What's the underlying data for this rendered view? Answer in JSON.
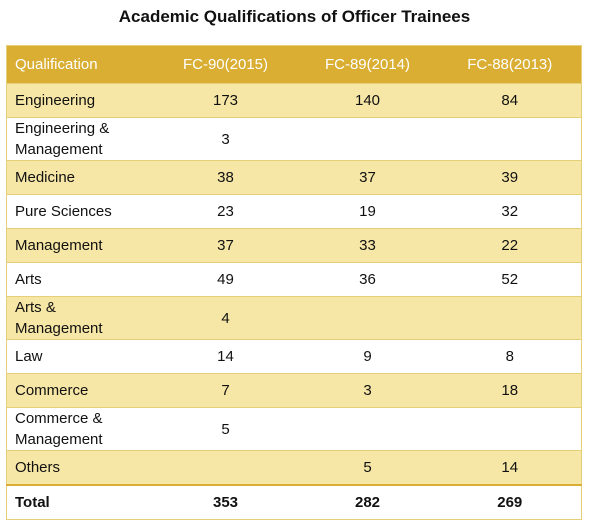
{
  "title": "Academic Qualifications of Officer Trainees",
  "colors": {
    "header_bg": "#d9ae33",
    "band_bg": "#f7e7a6",
    "border": "#e6cf7a"
  },
  "table": {
    "headers": [
      "Qualification",
      "FC-90(2015)",
      "FC-89(2014)",
      "FC-88(2013)"
    ],
    "rows": [
      [
        "Engineering",
        "173",
        "140",
        "84"
      ],
      [
        "Engineering & Management",
        "3",
        "",
        ""
      ],
      [
        "Medicine",
        "38",
        "37",
        "39"
      ],
      [
        "Pure Sciences",
        "23",
        "19",
        "32"
      ],
      [
        "Management",
        "37",
        "33",
        "22"
      ],
      [
        "Arts",
        "49",
        "36",
        "52"
      ],
      [
        "Arts & Management",
        "4",
        "",
        ""
      ],
      [
        "Law",
        "14",
        "9",
        "8"
      ],
      [
        "Commerce",
        "7",
        "3",
        "18"
      ],
      [
        "Commerce & Management",
        "5",
        "",
        ""
      ],
      [
        "Others",
        "",
        "5",
        "14"
      ]
    ],
    "total": [
      "Total",
      "353",
      "282",
      "269"
    ]
  }
}
